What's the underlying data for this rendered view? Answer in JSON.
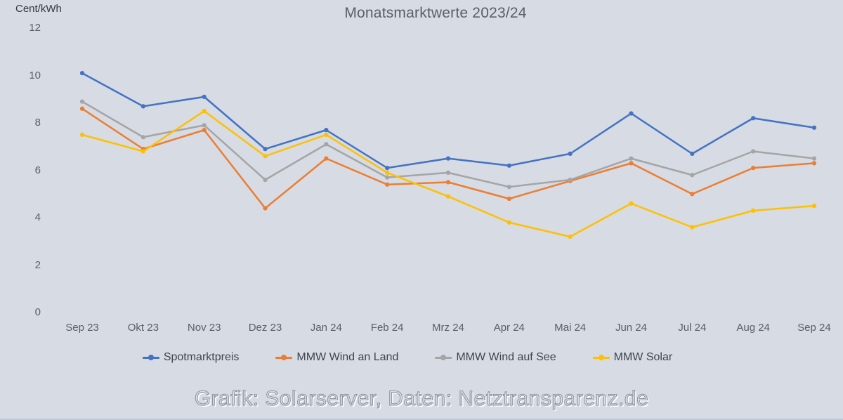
{
  "header": {
    "title": "Monatsmarktwerte 2023/24",
    "unit_label": "Cent/kWh"
  },
  "chart_data": {
    "type": "line",
    "title": "Monatsmarktwerte 2023/24",
    "ylabel": "Cent/kWh",
    "xlabel": "",
    "ylim": [
      0,
      12
    ],
    "ytick_step": 2,
    "grid": false,
    "legend_position": "bottom",
    "categories": [
      "Sep 23",
      "Okt 23",
      "Nov 23",
      "Dez 23",
      "Jan 24",
      "Feb 24",
      "Mrz 24",
      "Apr 24",
      "Mai 24",
      "Jun 24",
      "Jul 24",
      "Aug 24",
      "Sep 24"
    ],
    "series": [
      {
        "name": "Spotmarktpreis",
        "color": "#4472c4",
        "values": [
          10.1,
          8.7,
          9.1,
          6.9,
          7.7,
          6.1,
          6.5,
          6.2,
          6.7,
          8.4,
          6.7,
          8.2,
          7.8
        ]
      },
      {
        "name": "MMW Wind an Land",
        "color": "#ed7d31",
        "values": [
          8.6,
          6.9,
          7.7,
          4.4,
          6.5,
          5.4,
          5.5,
          4.8,
          5.55,
          6.3,
          5.0,
          6.1,
          6.3
        ]
      },
      {
        "name": "MMW Wind auf See",
        "color": "#a5a5a5",
        "values": [
          8.9,
          7.4,
          7.9,
          5.6,
          7.1,
          5.7,
          5.9,
          5.3,
          5.6,
          6.5,
          5.8,
          6.8,
          6.5
        ]
      },
      {
        "name": "MMW Solar",
        "color": "#ffc000",
        "values": [
          7.5,
          6.8,
          8.5,
          6.6,
          7.5,
          5.9,
          4.9,
          3.8,
          3.2,
          4.6,
          3.6,
          4.3,
          4.5
        ]
      }
    ]
  },
  "footer": {
    "caption": "Grafik: Solarserver, Daten: Netztransparenz.de"
  },
  "colors": {
    "background": "#d6dbe4",
    "axis_text": "#595f6b",
    "title_text": "#595f6b"
  }
}
